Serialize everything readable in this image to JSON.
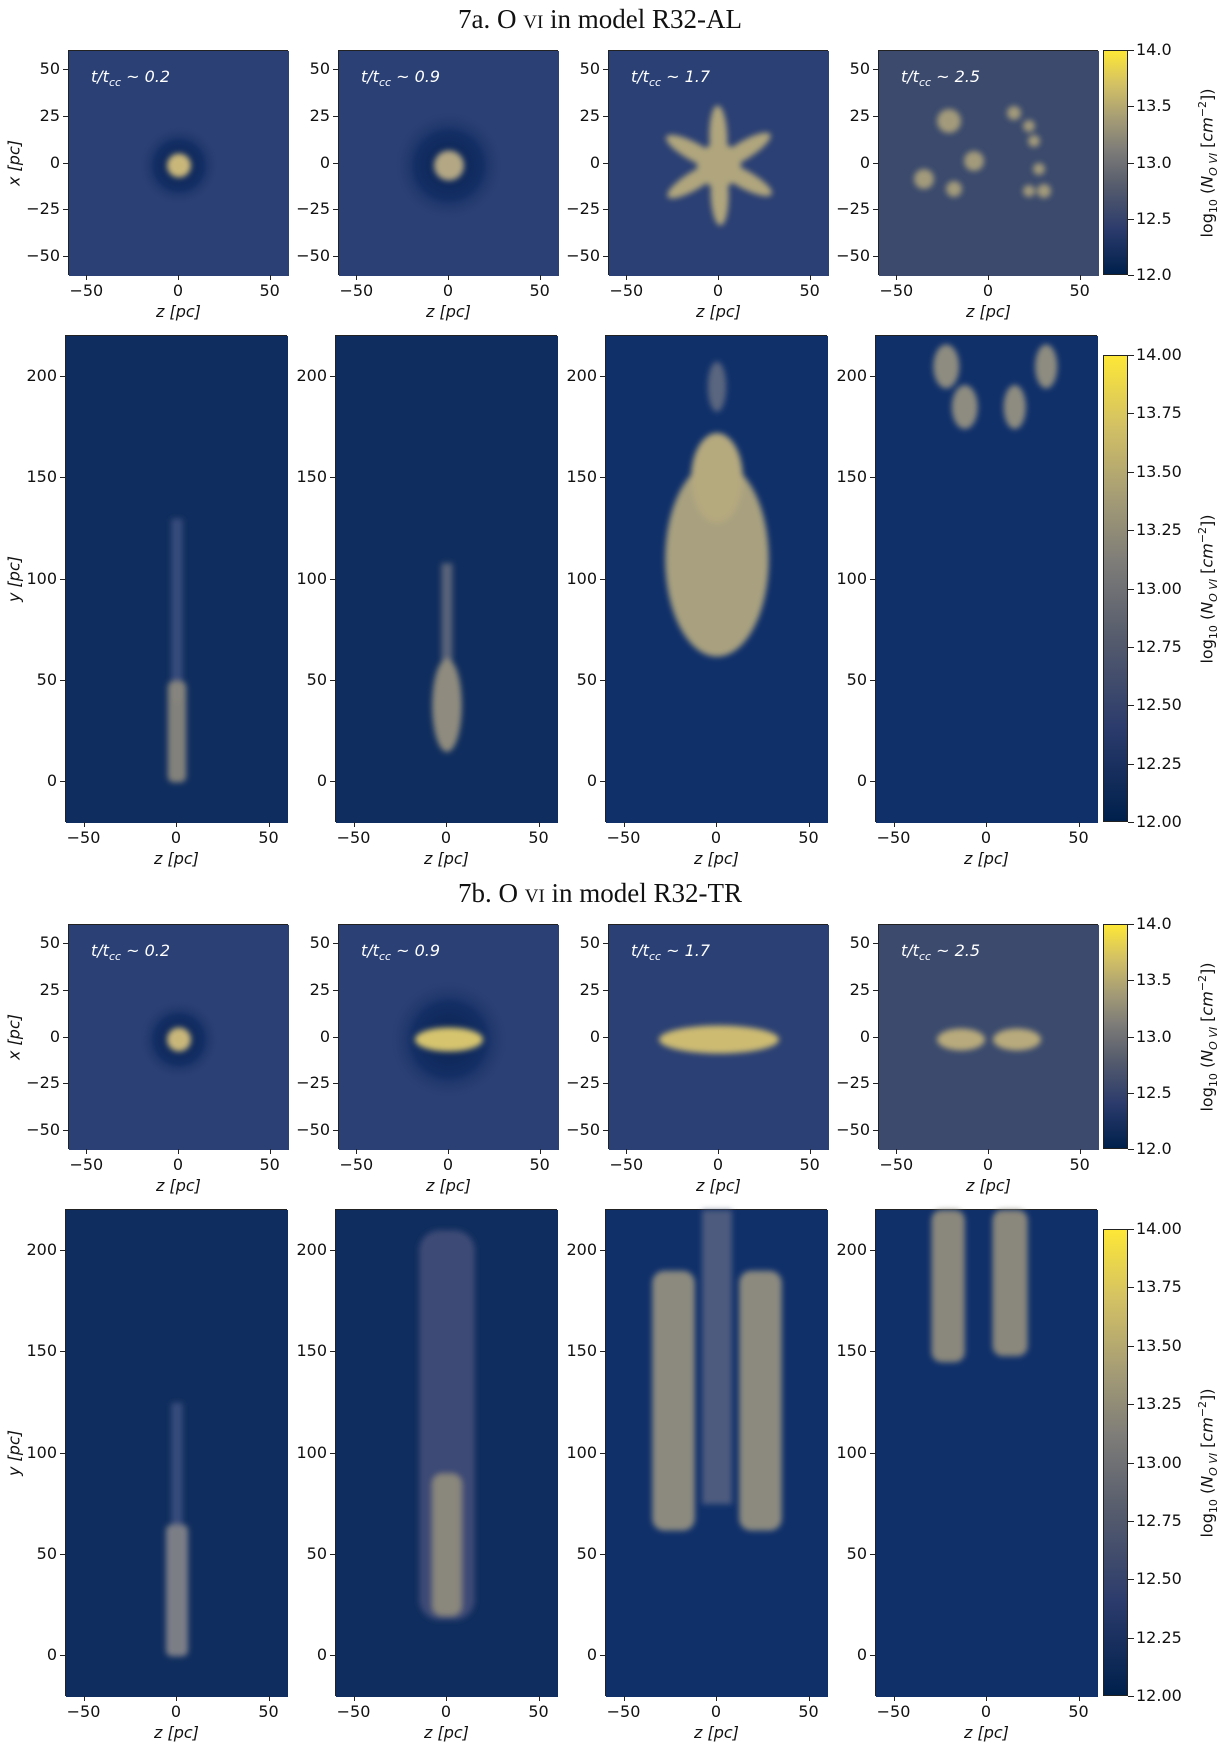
{
  "sections": [
    {
      "id": "7a",
      "title_prefix": "7a. O ",
      "title_ion": "vi",
      "title_suffix": " in model R32-AL"
    },
    {
      "id": "7b",
      "title_prefix": "7b. O ",
      "title_ion": "vi",
      "title_suffix": " in model R32-TR"
    }
  ],
  "time_labels": [
    "t/t_cc ~ 0.2",
    "t/t_cc ~ 0.9",
    "t/t_cc ~ 1.7",
    "t/t_cc ~ 2.5"
  ],
  "axis_labels": {
    "x_top": "x [pc]",
    "y_bottom": "y [pc]",
    "z": "z [pc]"
  },
  "colorbar": {
    "label": "log10 (N_O VI [cm^-2])",
    "top_ticks": [
      "14.0",
      "13.5",
      "13.0",
      "12.5",
      "12.0"
    ],
    "bottom_ticks": [
      "14.00",
      "13.75",
      "13.50",
      "13.25",
      "13.00",
      "12.75",
      "12.50",
      "12.25",
      "12.00"
    ]
  },
  "chart_data": {
    "type": "heatmap",
    "colormap_colors": [
      "#00204c",
      "#2b3b6c",
      "#7c7b78",
      "#d3c164",
      "#fde737"
    ],
    "top_row": {
      "x_range": [
        -60,
        60
      ],
      "y_range": [
        -60,
        60
      ],
      "xticks": [
        "−50",
        "0",
        "50"
      ],
      "yticks": [
        "50",
        "25",
        "0",
        "−25",
        "−50"
      ],
      "clim": [
        12.0,
        14.0
      ]
    },
    "bottom_row": {
      "x_range": [
        -60,
        60
      ],
      "y_range": [
        -20,
        220
      ],
      "xticks": [
        "−50",
        "0",
        "50"
      ],
      "yticks": [
        "200",
        "150",
        "100",
        "50",
        "0"
      ],
      "clim": [
        12.0,
        14.0
      ]
    }
  }
}
